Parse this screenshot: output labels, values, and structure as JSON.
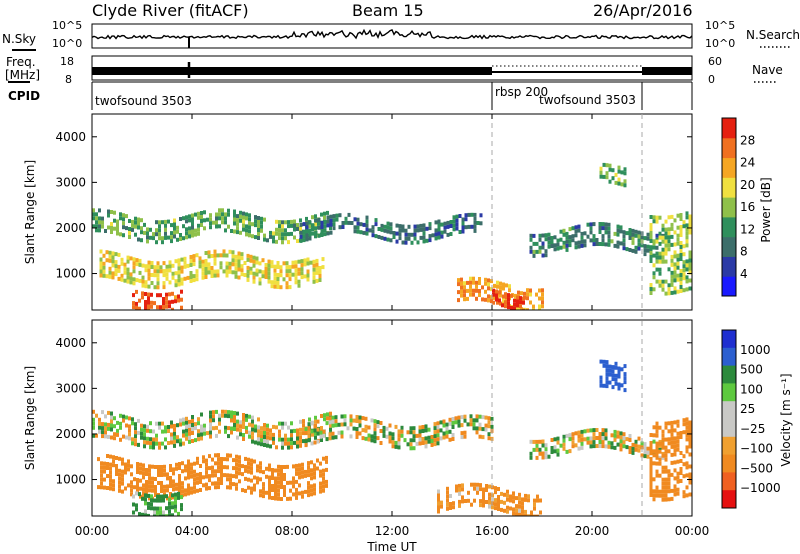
{
  "header": {
    "station": "Clyde River (fitACF)",
    "beam": "Beam 15",
    "date": "26/Apr/2016"
  },
  "noise_panel": {
    "left_label": "N.Sky",
    "right_label": "N.Search",
    "ticks_left": [
      "10^5",
      "10^0"
    ],
    "ticks_right": [
      "10^5",
      "10^0"
    ]
  },
  "freq_panel": {
    "left_label_line1": "Freq.",
    "left_label_line2": "[MHz]",
    "right_label": "Nave",
    "ticks_left": [
      "18",
      "8"
    ],
    "ticks_right": [
      "60",
      "0"
    ]
  },
  "cpid": {
    "label": "CPID",
    "segments": [
      {
        "name": "twofsound 3503",
        "start_hour": 0,
        "end_hour": 16
      },
      {
        "name": "rbsp 200",
        "start_hour": 16,
        "end_hour": 22
      },
      {
        "name": "twofsound 3503",
        "start_hour": 18.8,
        "end_hour": 22
      },
      {
        "name": "",
        "start_hour": 22,
        "end_hour": 24
      }
    ]
  },
  "x_axis": {
    "label": "Time UT",
    "ticks": [
      "00:00",
      "04:00",
      "08:00",
      "12:00",
      "16:00",
      "20:00",
      "00:00"
    ],
    "range_hours": [
      0,
      24
    ]
  },
  "colors": {
    "power": [
      "#1a1aff",
      "#2b3aa6",
      "#3c6e6a",
      "#2f8f5c",
      "#8fc04a",
      "#f0e040",
      "#f5a623",
      "#f07020",
      "#e52010"
    ],
    "velocity": [
      "#e51010",
      "#f06020",
      "#f08a20",
      "#f0a030",
      "#c9c9c6",
      "#c9c9c6",
      "#5ec93f",
      "#2c8a3c",
      "#2c5fcf",
      "#1f2fd0"
    ]
  },
  "chart_data": [
    {
      "type": "heatmap",
      "title": "",
      "quantity": "Power",
      "ylabel": "Slant Range [km]",
      "xlabel": "",
      "ylim": [
        200,
        4500
      ],
      "y_ticks": [
        "1000",
        "2000",
        "3000",
        "4000"
      ],
      "colorbar": {
        "label": "Power [dB]",
        "ticks": [
          "4",
          "8",
          "12",
          "16",
          "20",
          "24",
          "28"
        ],
        "range": [
          0,
          30
        ]
      },
      "regions": [
        {
          "start_hour": 0.0,
          "end_hour": 9.6,
          "range_km": [
            1850,
            2300
          ],
          "value_db": 13
        },
        {
          "start_hour": 0.3,
          "end_hour": 9.3,
          "range_km": [
            800,
            1400
          ],
          "value_db": 18
        },
        {
          "start_hour": 1.6,
          "end_hour": 3.6,
          "range_km": [
            300,
            700
          ],
          "value_db": 27
        },
        {
          "start_hour": 8.3,
          "end_hour": 15.6,
          "range_km": [
            1800,
            2200
          ],
          "value_db": 9
        },
        {
          "start_hour": 14.6,
          "end_hour": 18.0,
          "range_km": [
            300,
            800
          ],
          "value_db": 22
        },
        {
          "start_hour": 16.0,
          "end_hour": 17.3,
          "range_km": [
            300,
            600
          ],
          "value_db": 28
        },
        {
          "start_hour": 17.5,
          "end_hour": 22.8,
          "range_km": [
            1500,
            2000
          ],
          "value_db": 10
        },
        {
          "start_hour": 20.3,
          "end_hour": 21.3,
          "range_km": [
            2900,
            3300
          ],
          "value_db": 14
        },
        {
          "start_hour": 22.3,
          "end_hour": 24.0,
          "range_km": [
            700,
            2400
          ],
          "value_db": 15
        }
      ]
    },
    {
      "type": "heatmap",
      "title": "",
      "quantity": "Velocity",
      "ylabel": "Slant Range [km]",
      "xlabel": "Time UT",
      "ylim": [
        200,
        4500
      ],
      "y_ticks": [
        "1000",
        "2000",
        "3000",
        "4000"
      ],
      "colorbar": {
        "label": "Velocity [m s⁻¹]",
        "ticks": [
          "1000",
          "500",
          "100",
          "25",
          "−25",
          "−100",
          "−500",
          "−1000"
        ],
        "range": [
          -1000,
          1000
        ]
      },
      "regions": [
        {
          "start_hour": 0.0,
          "end_hour": 9.6,
          "range_km": [
            1850,
            2400
          ],
          "value_ms": 0
        },
        {
          "start_hour": 0.2,
          "end_hour": 9.4,
          "range_km": [
            700,
            1450
          ],
          "value_ms": -300
        },
        {
          "start_hour": 1.6,
          "end_hour": 3.6,
          "range_km": [
            300,
            800
          ],
          "value_ms": 200
        },
        {
          "start_hour": 8.5,
          "end_hour": 16.0,
          "range_km": [
            1800,
            2300
          ],
          "value_ms": 0
        },
        {
          "start_hour": 13.8,
          "end_hour": 18.0,
          "range_km": [
            300,
            800
          ],
          "value_ms": -200
        },
        {
          "start_hour": 17.5,
          "end_hour": 22.8,
          "range_km": [
            1600,
            2000
          ],
          "value_ms": 0
        },
        {
          "start_hour": 20.3,
          "end_hour": 21.3,
          "range_km": [
            2900,
            3500
          ],
          "value_ms": 800
        },
        {
          "start_hour": 22.3,
          "end_hour": 24.0,
          "range_km": [
            700,
            2400
          ],
          "value_ms": -300
        }
      ]
    }
  ]
}
